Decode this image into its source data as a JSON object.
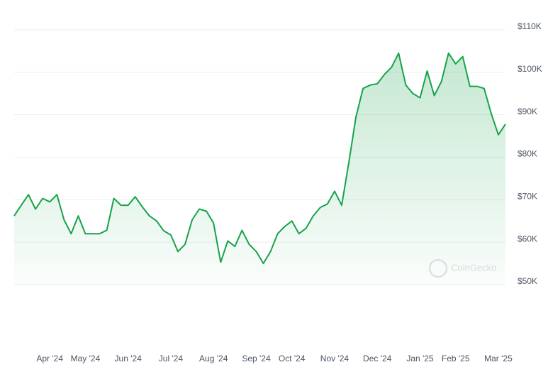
{
  "chart_data": {
    "type": "area-line",
    "watermark": "CoinGecko",
    "color": "#16a34a",
    "categories": [
      null,
      null,
      null,
      null,
      null,
      "Apr '24",
      null,
      null,
      null,
      null,
      "May '24",
      null,
      null,
      null,
      null,
      null,
      "Jun '24",
      null,
      null,
      null,
      null,
      null,
      "Jul '24",
      null,
      null,
      null,
      null,
      null,
      "Aug '24",
      null,
      null,
      null,
      null,
      null,
      "Sep '24",
      null,
      null,
      null,
      null,
      "Oct '24",
      null,
      null,
      null,
      null,
      null,
      "Nov '24",
      null,
      null,
      null,
      null,
      null,
      "Dec '24",
      null,
      null,
      null,
      null,
      null,
      "Jan '25",
      null,
      null,
      null,
      null,
      "Feb '25",
      null,
      null,
      null,
      null,
      null,
      "Mar '25",
      null
    ],
    "values": [
      66200,
      68700,
      71200,
      67800,
      70300,
      69500,
      71200,
      65300,
      62000,
      66200,
      62000,
      62000,
      62000,
      62800,
      70300,
      68700,
      68700,
      70700,
      68300,
      66200,
      65000,
      62700,
      61700,
      57800,
      59500,
      65300,
      67800,
      67300,
      64500,
      55300,
      60300,
      59000,
      62800,
      59500,
      57800,
      55000,
      57800,
      62000,
      63700,
      65000,
      62000,
      63300,
      66200,
      68200,
      69000,
      72000,
      68700,
      78700,
      89500,
      96200,
      97000,
      97300,
      99500,
      101200,
      104500,
      97000,
      95000,
      94000,
      100300,
      94500,
      97800,
      104500,
      102000,
      103700,
      96700,
      96700,
      96200,
      90300,
      85300,
      87800
    ],
    "ylim": [
      50000,
      110000
    ],
    "yticks": [
      {
        "value": 50000,
        "label": "$50K"
      },
      {
        "value": 60000,
        "label": "$60K"
      },
      {
        "value": 70000,
        "label": "$70K"
      },
      {
        "value": 80000,
        "label": "$80K"
      },
      {
        "value": 90000,
        "label": "$90K"
      },
      {
        "value": 100000,
        "label": "$100K"
      },
      {
        "value": 110000,
        "label": "$110K"
      }
    ],
    "grid": true
  }
}
